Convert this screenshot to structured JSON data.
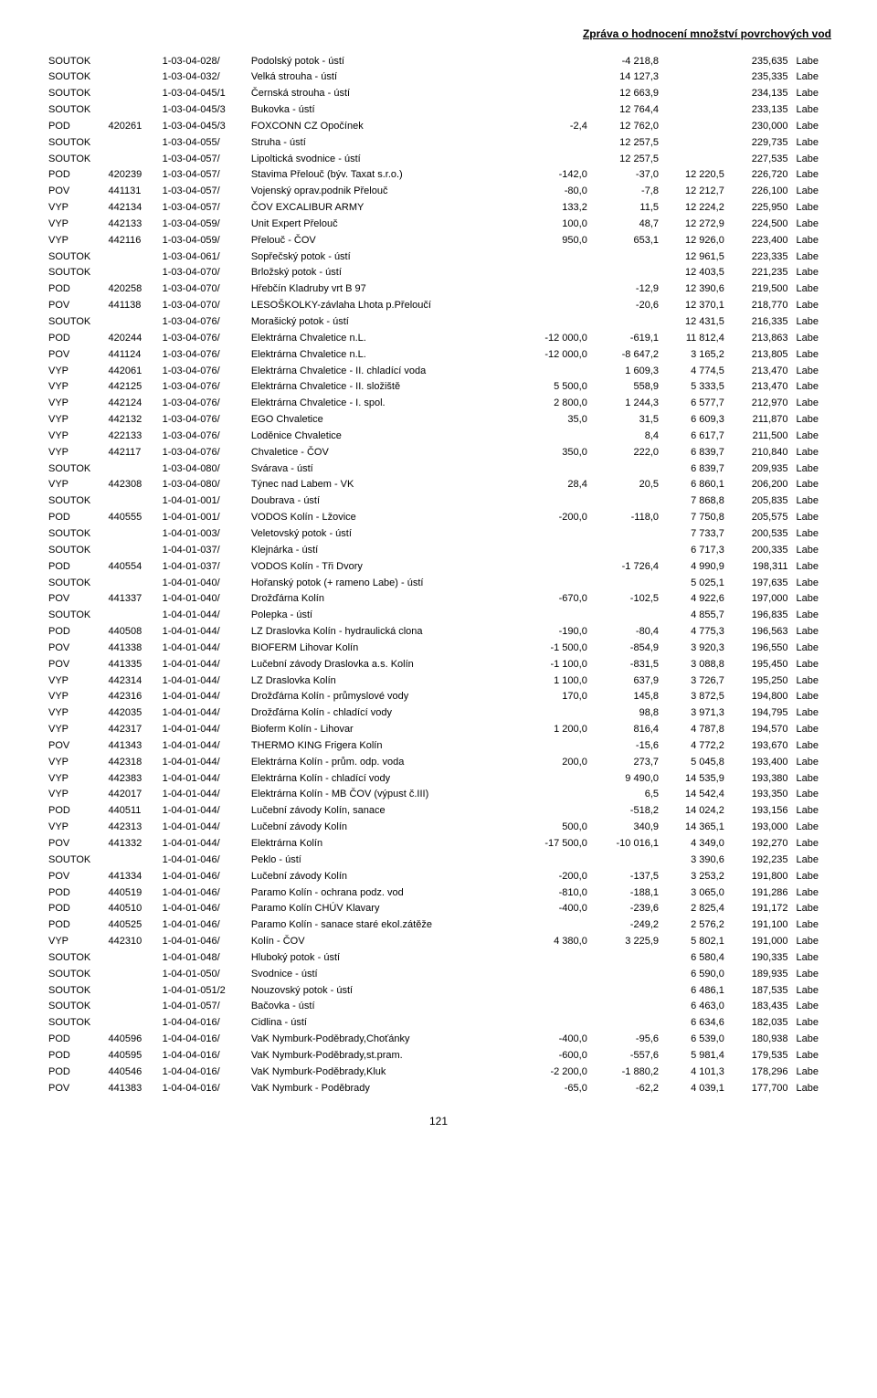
{
  "header": {
    "title": "Zpráva o hodnocení množství povrchových vod"
  },
  "page_number": "121",
  "rows": [
    {
      "type": "SOUTOK",
      "code": "",
      "locator": "1-03-04-028/",
      "name": "Podolský potok - ústí",
      "v1": "",
      "v2": "-4 218,8",
      "v3": "",
      "v4": "235,635",
      "river": "Labe"
    },
    {
      "type": "SOUTOK",
      "code": "",
      "locator": "1-03-04-032/",
      "name": "Velká strouha - ústí",
      "v1": "",
      "v2": "14 127,3",
      "v3": "",
      "v4": "235,335",
      "river": "Labe"
    },
    {
      "type": "SOUTOK",
      "code": "",
      "locator": "1-03-04-045/1",
      "name": "Černská strouha - ústí",
      "v1": "",
      "v2": "12 663,9",
      "v3": "",
      "v4": "234,135",
      "river": "Labe"
    },
    {
      "type": "SOUTOK",
      "code": "",
      "locator": "1-03-04-045/3",
      "name": "Bukovka - ústí",
      "v1": "",
      "v2": "12 764,4",
      "v3": "",
      "v4": "233,135",
      "river": "Labe"
    },
    {
      "type": "POD",
      "code": "420261",
      "locator": "1-03-04-045/3",
      "name": "FOXCONN CZ Opočínek",
      "v1": "-2,4",
      "v2": "12 762,0",
      "v3": "",
      "v4": "230,000",
      "river": "Labe"
    },
    {
      "type": "SOUTOK",
      "code": "",
      "locator": "1-03-04-055/",
      "name": "Struha - ústí",
      "v1": "",
      "v2": "12 257,5",
      "v3": "",
      "v4": "229,735",
      "river": "Labe"
    },
    {
      "type": "SOUTOK",
      "code": "",
      "locator": "1-03-04-057/",
      "name": "Lipoltická svodnice - ústí",
      "v1": "",
      "v2": "12 257,5",
      "v3": "",
      "v4": "227,535",
      "river": "Labe"
    },
    {
      "type": "POD",
      "code": "420239",
      "locator": "1-03-04-057/",
      "name": "Stavima Přelouč (býv. Taxat s.r.o.)",
      "v1": "-142,0",
      "v2": "-37,0",
      "v3": "12 220,5",
      "v4": "226,720",
      "river": "Labe"
    },
    {
      "type": "POV",
      "code": "441131",
      "locator": "1-03-04-057/",
      "name": "Vojenský oprav.podnik Přelouč",
      "v1": "-80,0",
      "v2": "-7,8",
      "v3": "12 212,7",
      "v4": "226,100",
      "river": "Labe"
    },
    {
      "type": "VYP",
      "code": "442134",
      "locator": "1-03-04-057/",
      "name": "ČOV EXCALIBUR ARMY",
      "v1": "133,2",
      "v2": "11,5",
      "v3": "12 224,2",
      "v4": "225,950",
      "river": "Labe"
    },
    {
      "type": "VYP",
      "code": "442133",
      "locator": "1-03-04-059/",
      "name": "Unit Expert Přelouč",
      "v1": "100,0",
      "v2": "48,7",
      "v3": "12 272,9",
      "v4": "224,500",
      "river": "Labe"
    },
    {
      "type": "VYP",
      "code": "442116",
      "locator": "1-03-04-059/",
      "name": "Přelouč - ČOV",
      "v1": "950,0",
      "v2": "653,1",
      "v3": "12 926,0",
      "v4": "223,400",
      "river": "Labe"
    },
    {
      "type": "SOUTOK",
      "code": "",
      "locator": "1-03-04-061/",
      "name": "Sopřečský potok - ústí",
      "v1": "",
      "v2": "",
      "v3": "12 961,5",
      "v4": "223,335",
      "river": "Labe"
    },
    {
      "type": "SOUTOK",
      "code": "",
      "locator": "1-03-04-070/",
      "name": "Brložský potok - ústí",
      "v1": "",
      "v2": "",
      "v3": "12 403,5",
      "v4": "221,235",
      "river": "Labe"
    },
    {
      "type": "POD",
      "code": "420258",
      "locator": "1-03-04-070/",
      "name": "Hřebčín Kladruby vrt B 97",
      "v1": "",
      "v2": "-12,9",
      "v3": "12 390,6",
      "v4": "219,500",
      "river": "Labe"
    },
    {
      "type": "POV",
      "code": "441138",
      "locator": "1-03-04-070/",
      "name": "LESOŠKOLKY-závlaha Lhota p.Přeloučí",
      "v1": "",
      "v2": "-20,6",
      "v3": "12 370,1",
      "v4": "218,770",
      "river": "Labe"
    },
    {
      "type": "SOUTOK",
      "code": "",
      "locator": "1-03-04-076/",
      "name": "Morašický potok - ústí",
      "v1": "",
      "v2": "",
      "v3": "12 431,5",
      "v4": "216,335",
      "river": "Labe"
    },
    {
      "type": "POD",
      "code": "420244",
      "locator": "1-03-04-076/",
      "name": "Elektrárna Chvaletice n.L.",
      "v1": "-12 000,0",
      "v2": "-619,1",
      "v3": "11 812,4",
      "v4": "213,863",
      "river": "Labe"
    },
    {
      "type": "POV",
      "code": "441124",
      "locator": "1-03-04-076/",
      "name": "Elektrárna Chvaletice n.L.",
      "v1": "-12 000,0",
      "v2": "-8 647,2",
      "v3": "3 165,2",
      "v4": "213,805",
      "river": "Labe"
    },
    {
      "type": "VYP",
      "code": "442061",
      "locator": "1-03-04-076/",
      "name": "Elektrárna Chvaletice - II. chladící voda",
      "v1": "",
      "v2": "1 609,3",
      "v3": "4 774,5",
      "v4": "213,470",
      "river": "Labe"
    },
    {
      "type": "VYP",
      "code": "442125",
      "locator": "1-03-04-076/",
      "name": "Elektrárna Chvaletice - II. složiště",
      "v1": "5 500,0",
      "v2": "558,9",
      "v3": "5 333,5",
      "v4": "213,470",
      "river": "Labe"
    },
    {
      "type": "VYP",
      "code": "442124",
      "locator": "1-03-04-076/",
      "name": "Elektrárna Chvaletice - I. spol.",
      "v1": "2 800,0",
      "v2": "1 244,3",
      "v3": "6 577,7",
      "v4": "212,970",
      "river": "Labe"
    },
    {
      "type": "VYP",
      "code": "442132",
      "locator": "1-03-04-076/",
      "name": "EGO Chvaletice",
      "v1": "35,0",
      "v2": "31,5",
      "v3": "6 609,3",
      "v4": "211,870",
      "river": "Labe"
    },
    {
      "type": "VYP",
      "code": "422133",
      "locator": "1-03-04-076/",
      "name": "Loděnice Chvaletice",
      "v1": "",
      "v2": "8,4",
      "v3": "6 617,7",
      "v4": "211,500",
      "river": "Labe"
    },
    {
      "type": "VYP",
      "code": "442117",
      "locator": "1-03-04-076/",
      "name": "Chvaletice - ČOV",
      "v1": "350,0",
      "v2": "222,0",
      "v3": "6 839,7",
      "v4": "210,840",
      "river": "Labe"
    },
    {
      "type": "SOUTOK",
      "code": "",
      "locator": "1-03-04-080/",
      "name": "Svárava - ústí",
      "v1": "",
      "v2": "",
      "v3": "6 839,7",
      "v4": "209,935",
      "river": "Labe"
    },
    {
      "type": "VYP",
      "code": "442308",
      "locator": "1-03-04-080/",
      "name": "Týnec nad Labem - VK",
      "v1": "28,4",
      "v2": "20,5",
      "v3": "6 860,1",
      "v4": "206,200",
      "river": "Labe"
    },
    {
      "type": "SOUTOK",
      "code": "",
      "locator": "1-04-01-001/",
      "name": "Doubrava - ústí",
      "v1": "",
      "v2": "",
      "v3": "7 868,8",
      "v4": "205,835",
      "river": "Labe"
    },
    {
      "type": "POD",
      "code": "440555",
      "locator": "1-04-01-001/",
      "name": "VODOS Kolín - Lžovice",
      "v1": "-200,0",
      "v2": "-118,0",
      "v3": "7 750,8",
      "v4": "205,575",
      "river": "Labe"
    },
    {
      "type": "SOUTOK",
      "code": "",
      "locator": "1-04-01-003/",
      "name": "Veletovský potok - ústí",
      "v1": "",
      "v2": "",
      "v3": "7 733,7",
      "v4": "200,535",
      "river": "Labe"
    },
    {
      "type": "SOUTOK",
      "code": "",
      "locator": "1-04-01-037/",
      "name": "Klejnárka - ústí",
      "v1": "",
      "v2": "",
      "v3": "6 717,3",
      "v4": "200,335",
      "river": "Labe"
    },
    {
      "type": "POD",
      "code": "440554",
      "locator": "1-04-01-037/",
      "name": "VODOS Kolín - Tři Dvory",
      "v1": "",
      "v2": "-1 726,4",
      "v3": "4 990,9",
      "v4": "198,311",
      "river": "Labe"
    },
    {
      "type": "SOUTOK",
      "code": "",
      "locator": "1-04-01-040/",
      "name": "Hořanský potok (+ rameno Labe) - ústí",
      "v1": "",
      "v2": "",
      "v3": "5 025,1",
      "v4": "197,635",
      "river": "Labe"
    },
    {
      "type": "POV",
      "code": "441337",
      "locator": "1-04-01-040/",
      "name": "Drožďárna Kolín",
      "v1": "-670,0",
      "v2": "-102,5",
      "v3": "4 922,6",
      "v4": "197,000",
      "river": "Labe"
    },
    {
      "type": "SOUTOK",
      "code": "",
      "locator": "1-04-01-044/",
      "name": "Polepka - ústí",
      "v1": "",
      "v2": "",
      "v3": "4 855,7",
      "v4": "196,835",
      "river": "Labe"
    },
    {
      "type": "POD",
      "code": "440508",
      "locator": "1-04-01-044/",
      "name": "LZ Draslovka Kolín - hydraulická clona",
      "v1": "-190,0",
      "v2": "-80,4",
      "v3": "4 775,3",
      "v4": "196,563",
      "river": "Labe"
    },
    {
      "type": "POV",
      "code": "441338",
      "locator": "1-04-01-044/",
      "name": "BIOFERM Lihovar Kolín",
      "v1": "-1 500,0",
      "v2": "-854,9",
      "v3": "3 920,3",
      "v4": "196,550",
      "river": "Labe"
    },
    {
      "type": "POV",
      "code": "441335",
      "locator": "1-04-01-044/",
      "name": "Lučební závody Draslovka a.s. Kolín",
      "v1": "-1 100,0",
      "v2": "-831,5",
      "v3": "3 088,8",
      "v4": "195,450",
      "river": "Labe"
    },
    {
      "type": "VYP",
      "code": "442314",
      "locator": "1-04-01-044/",
      "name": "LZ  Draslovka Kolín",
      "v1": "1 100,0",
      "v2": "637,9",
      "v3": "3 726,7",
      "v4": "195,250",
      "river": "Labe"
    },
    {
      "type": "VYP",
      "code": "442316",
      "locator": "1-04-01-044/",
      "name": "Drožďárna Kolín - průmyslové vody",
      "v1": "170,0",
      "v2": "145,8",
      "v3": "3 872,5",
      "v4": "194,800",
      "river": "Labe"
    },
    {
      "type": "VYP",
      "code": "442035",
      "locator": "1-04-01-044/",
      "name": "Drožďárna Kolín - chladící vody",
      "v1": "",
      "v2": "98,8",
      "v3": "3 971,3",
      "v4": "194,795",
      "river": "Labe"
    },
    {
      "type": "VYP",
      "code": "442317",
      "locator": "1-04-01-044/",
      "name": "Bioferm Kolín - Lihovar",
      "v1": "1 200,0",
      "v2": "816,4",
      "v3": "4 787,8",
      "v4": "194,570",
      "river": "Labe"
    },
    {
      "type": "POV",
      "code": "441343",
      "locator": "1-04-01-044/",
      "name": "THERMO KING Frigera Kolín",
      "v1": "",
      "v2": "-15,6",
      "v3": "4 772,2",
      "v4": "193,670",
      "river": "Labe"
    },
    {
      "type": "VYP",
      "code": "442318",
      "locator": "1-04-01-044/",
      "name": "Elektrárna Kolín - prům. odp. voda",
      "v1": "200,0",
      "v2": "273,7",
      "v3": "5 045,8",
      "v4": "193,400",
      "river": "Labe"
    },
    {
      "type": "VYP",
      "code": "442383",
      "locator": "1-04-01-044/",
      "name": "Elektrárna Kolín - chladící vody",
      "v1": "",
      "v2": "9 490,0",
      "v3": "14 535,9",
      "v4": "193,380",
      "river": "Labe"
    },
    {
      "type": "VYP",
      "code": "442017",
      "locator": "1-04-01-044/",
      "name": "Elektrárna Kolín - MB ČOV (výpust č.III)",
      "v1": "",
      "v2": "6,5",
      "v3": "14 542,4",
      "v4": "193,350",
      "river": "Labe"
    },
    {
      "type": "POD",
      "code": "440511",
      "locator": "1-04-01-044/",
      "name": "Lučební závody Kolín, sanace",
      "v1": "",
      "v2": "-518,2",
      "v3": "14 024,2",
      "v4": "193,156",
      "river": "Labe"
    },
    {
      "type": "VYP",
      "code": "442313",
      "locator": "1-04-01-044/",
      "name": "Lučební závody Kolín",
      "v1": "500,0",
      "v2": "340,9",
      "v3": "14 365,1",
      "v4": "193,000",
      "river": "Labe"
    },
    {
      "type": "POV",
      "code": "441332",
      "locator": "1-04-01-044/",
      "name": "Elektrárna Kolín",
      "v1": "-17 500,0",
      "v2": "-10 016,1",
      "v3": "4 349,0",
      "v4": "192,270",
      "river": "Labe"
    },
    {
      "type": "SOUTOK",
      "code": "",
      "locator": "1-04-01-046/",
      "name": "Peklo - ústí",
      "v1": "",
      "v2": "",
      "v3": "3 390,6",
      "v4": "192,235",
      "river": "Labe"
    },
    {
      "type": "POV",
      "code": "441334",
      "locator": "1-04-01-046/",
      "name": "Lučební závody Kolín",
      "v1": "-200,0",
      "v2": "-137,5",
      "v3": "3 253,2",
      "v4": "191,800",
      "river": "Labe"
    },
    {
      "type": "POD",
      "code": "440519",
      "locator": "1-04-01-046/",
      "name": "Paramo Kolín - ochrana podz. vod",
      "v1": "-810,0",
      "v2": "-188,1",
      "v3": "3 065,0",
      "v4": "191,286",
      "river": "Labe"
    },
    {
      "type": "POD",
      "code": "440510",
      "locator": "1-04-01-046/",
      "name": "Paramo  Kolín CHÚV Klavary",
      "v1": "-400,0",
      "v2": "-239,6",
      "v3": "2 825,4",
      "v4": "191,172",
      "river": "Labe"
    },
    {
      "type": "POD",
      "code": "440525",
      "locator": "1-04-01-046/",
      "name": "Paramo Kolín - sanace staré ekol.zátěže",
      "v1": "",
      "v2": "-249,2",
      "v3": "2 576,2",
      "v4": "191,100",
      "river": "Labe"
    },
    {
      "type": "VYP",
      "code": "442310",
      "locator": "1-04-01-046/",
      "name": "Kolín - ČOV",
      "v1": "4 380,0",
      "v2": "3 225,9",
      "v3": "5 802,1",
      "v4": "191,000",
      "river": "Labe"
    },
    {
      "type": "SOUTOK",
      "code": "",
      "locator": "1-04-01-048/",
      "name": "Hluboký potok - ústí",
      "v1": "",
      "v2": "",
      "v3": "6 580,4",
      "v4": "190,335",
      "river": "Labe"
    },
    {
      "type": "SOUTOK",
      "code": "",
      "locator": "1-04-01-050/",
      "name": "Svodnice - ústí",
      "v1": "",
      "v2": "",
      "v3": "6 590,0",
      "v4": "189,935",
      "river": "Labe"
    },
    {
      "type": "SOUTOK",
      "code": "",
      "locator": "1-04-01-051/2",
      "name": "Nouzovský potok - ústí",
      "v1": "",
      "v2": "",
      "v3": "6 486,1",
      "v4": "187,535",
      "river": "Labe"
    },
    {
      "type": "SOUTOK",
      "code": "",
      "locator": "1-04-01-057/",
      "name": "Bačovka - ústí",
      "v1": "",
      "v2": "",
      "v3": "6 463,0",
      "v4": "183,435",
      "river": "Labe"
    },
    {
      "type": "SOUTOK",
      "code": "",
      "locator": "1-04-04-016/",
      "name": "Cidlina - ústí",
      "v1": "",
      "v2": "",
      "v3": "6 634,6",
      "v4": "182,035",
      "river": "Labe"
    },
    {
      "type": "POD",
      "code": "440596",
      "locator": "1-04-04-016/",
      "name": "VaK Nymburk-Poděbrady,Choťánky",
      "v1": "-400,0",
      "v2": "-95,6",
      "v3": "6 539,0",
      "v4": "180,938",
      "river": "Labe"
    },
    {
      "type": "POD",
      "code": "440595",
      "locator": "1-04-04-016/",
      "name": "VaK Nymburk-Poděbrady,st.pram.",
      "v1": "-600,0",
      "v2": "-557,6",
      "v3": "5 981,4",
      "v4": "179,535",
      "river": "Labe"
    },
    {
      "type": "POD",
      "code": "440546",
      "locator": "1-04-04-016/",
      "name": "VaK Nymburk-Poděbrady,Kluk",
      "v1": "-2 200,0",
      "v2": "-1 880,2",
      "v3": "4 101,3",
      "v4": "178,296",
      "river": "Labe"
    },
    {
      "type": "POV",
      "code": "441383",
      "locator": "1-04-04-016/",
      "name": "VaK Nymburk - Poděbrady",
      "v1": "-65,0",
      "v2": "-62,2",
      "v3": "4 039,1",
      "v4": "177,700",
      "river": "Labe"
    }
  ]
}
